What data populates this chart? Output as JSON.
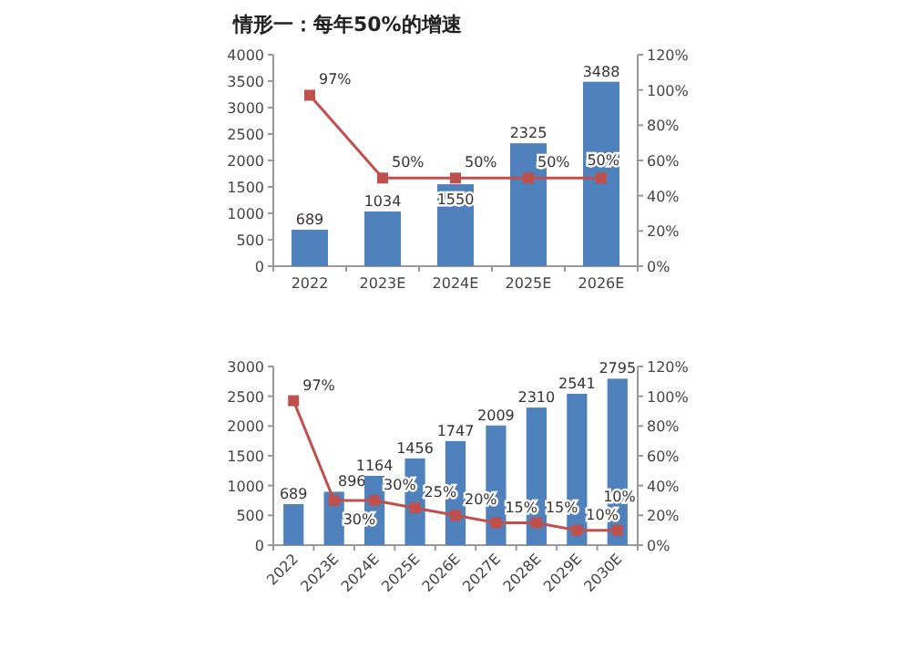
{
  "chart_data": [
    {
      "type": "bar",
      "title": "情形一：每年50%的增速",
      "categories": [
        "2022",
        "2023E",
        "2024E",
        "2025E",
        "2026E"
      ],
      "series": [
        {
          "color": "#4f81bd",
          "values": [
            689,
            1034,
            1550,
            2325,
            3488
          ],
          "value_labels": [
            "689",
            "1034",
            "1550",
            "2325",
            "3488"
          ]
        },
        {
          "type": "line",
          "axis": "y2",
          "color": "#c0504d",
          "marker": "square",
          "line_style": "solid",
          "values": [
            97,
            50,
            50,
            50,
            50
          ],
          "value_labels": [
            "97%",
            "50%",
            "50%",
            "50%",
            "50%"
          ]
        }
      ],
      "ylim": [
        0,
        4000
      ],
      "yticks": [
        0,
        500,
        1000,
        1500,
        2000,
        2500,
        3000,
        3500,
        4000
      ],
      "y2lim": [
        0,
        120
      ],
      "y2ticks": [
        {
          "value": 0,
          "label": "0%"
        },
        {
          "value": 20,
          "label": "20%"
        },
        {
          "value": 40,
          "label": "40%"
        },
        {
          "value": 60,
          "label": "60%"
        },
        {
          "value": 80,
          "label": "80%"
        },
        {
          "value": 100,
          "label": "100%"
        },
        {
          "value": 120,
          "label": "120%"
        }
      ]
    },
    {
      "type": "bar",
      "categories": [
        "2022",
        "2023E",
        "2024E",
        "2025E",
        "2026E",
        "2027E",
        "2028E",
        "2029E",
        "2030E"
      ],
      "series": [
        {
          "color": "#4f81bd",
          "values": [
            689,
            896,
            1164,
            1456,
            1747,
            2009,
            2310,
            2541,
            2795
          ],
          "value_labels": [
            "689",
            "896",
            "1164",
            "1456",
            "1747",
            "2009",
            "2310",
            "2541",
            "2795"
          ]
        },
        {
          "type": "line",
          "axis": "y2",
          "color": "#c0504d",
          "marker": "square",
          "line_style": "solid",
          "values": [
            97,
            30,
            30,
            25,
            20,
            15,
            15,
            10,
            10
          ],
          "value_labels": [
            "97%",
            "30%",
            "30%",
            "25%",
            "20%",
            "15%",
            "15%",
            "10%",
            "10%"
          ]
        }
      ],
      "ylim": [
        0,
        3000
      ],
      "yticks": [
        0,
        500,
        1000,
        1500,
        2000,
        2500,
        3000
      ],
      "y2lim": [
        0,
        120
      ],
      "y2ticks": [
        {
          "value": 0,
          "label": "0%"
        },
        {
          "value": 20,
          "label": "20%"
        },
        {
          "value": 40,
          "label": "40%"
        },
        {
          "value": 60,
          "label": "60%"
        },
        {
          "value": 80,
          "label": "80%"
        },
        {
          "value": 100,
          "label": "100%"
        },
        {
          "value": 120,
          "label": "120%"
        }
      ]
    }
  ]
}
